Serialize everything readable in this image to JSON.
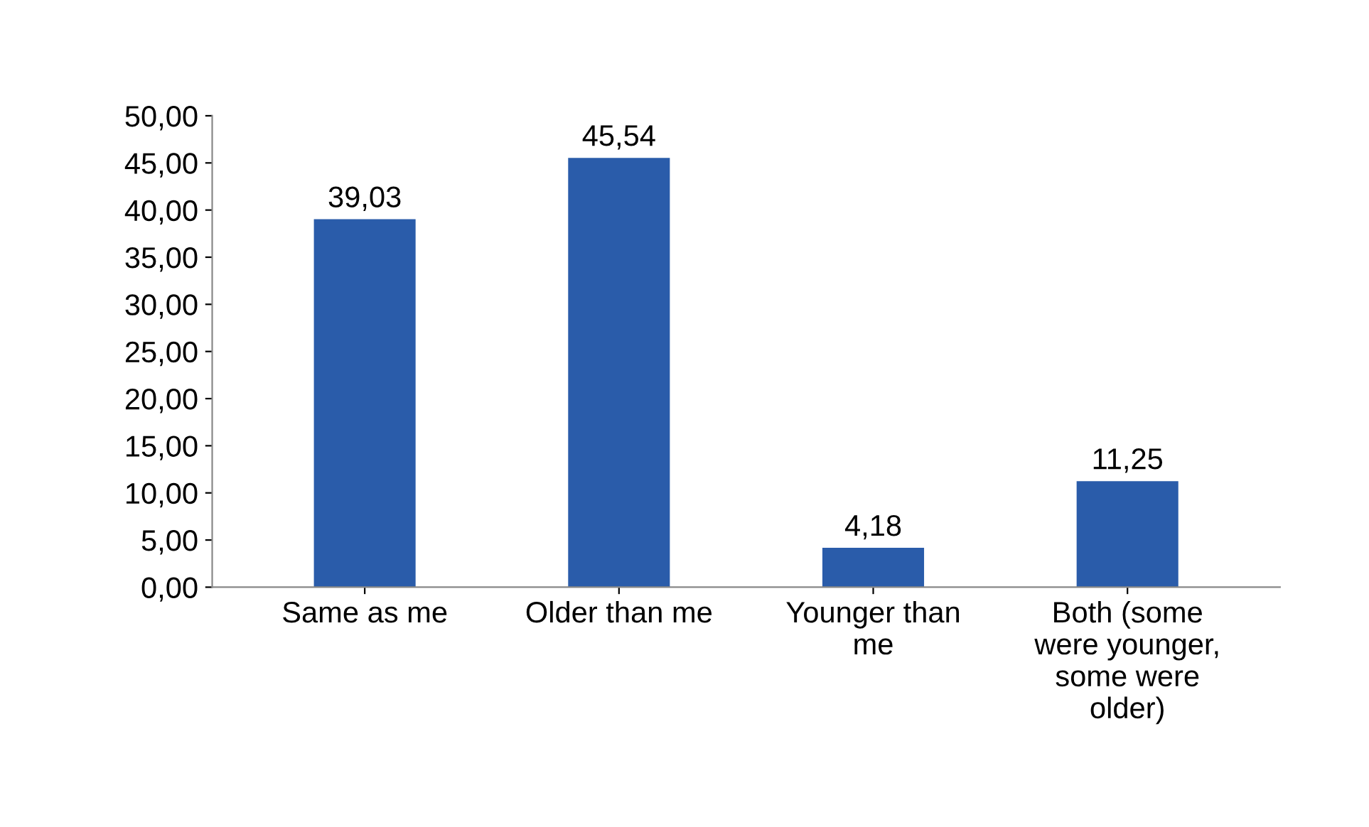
{
  "chart_data": {
    "type": "bar",
    "categories": [
      "Same as me",
      "Older than me",
      "Younger than\nme",
      "Both (some\nwere younger,\nsome were\nolder)"
    ],
    "values": [
      39.03,
      45.54,
      4.18,
      11.25
    ],
    "value_labels": [
      "39,03",
      "45,54",
      "4,18",
      "11,25"
    ],
    "color": "#2a5caa",
    "ylim": [
      0,
      50
    ],
    "yticks": [
      {
        "value": 0,
        "label": "0,00"
      },
      {
        "value": 5,
        "label": "5,00"
      },
      {
        "value": 10,
        "label": "10,00"
      },
      {
        "value": 15,
        "label": "15,00"
      },
      {
        "value": 20,
        "label": "20,00"
      },
      {
        "value": 25,
        "label": "25,00"
      },
      {
        "value": 30,
        "label": "30,00"
      },
      {
        "value": 35,
        "label": "35,00"
      },
      {
        "value": 40,
        "label": "40,00"
      },
      {
        "value": 45,
        "label": "45,00"
      },
      {
        "value": 50,
        "label": "50,00"
      }
    ],
    "grid": false
  }
}
